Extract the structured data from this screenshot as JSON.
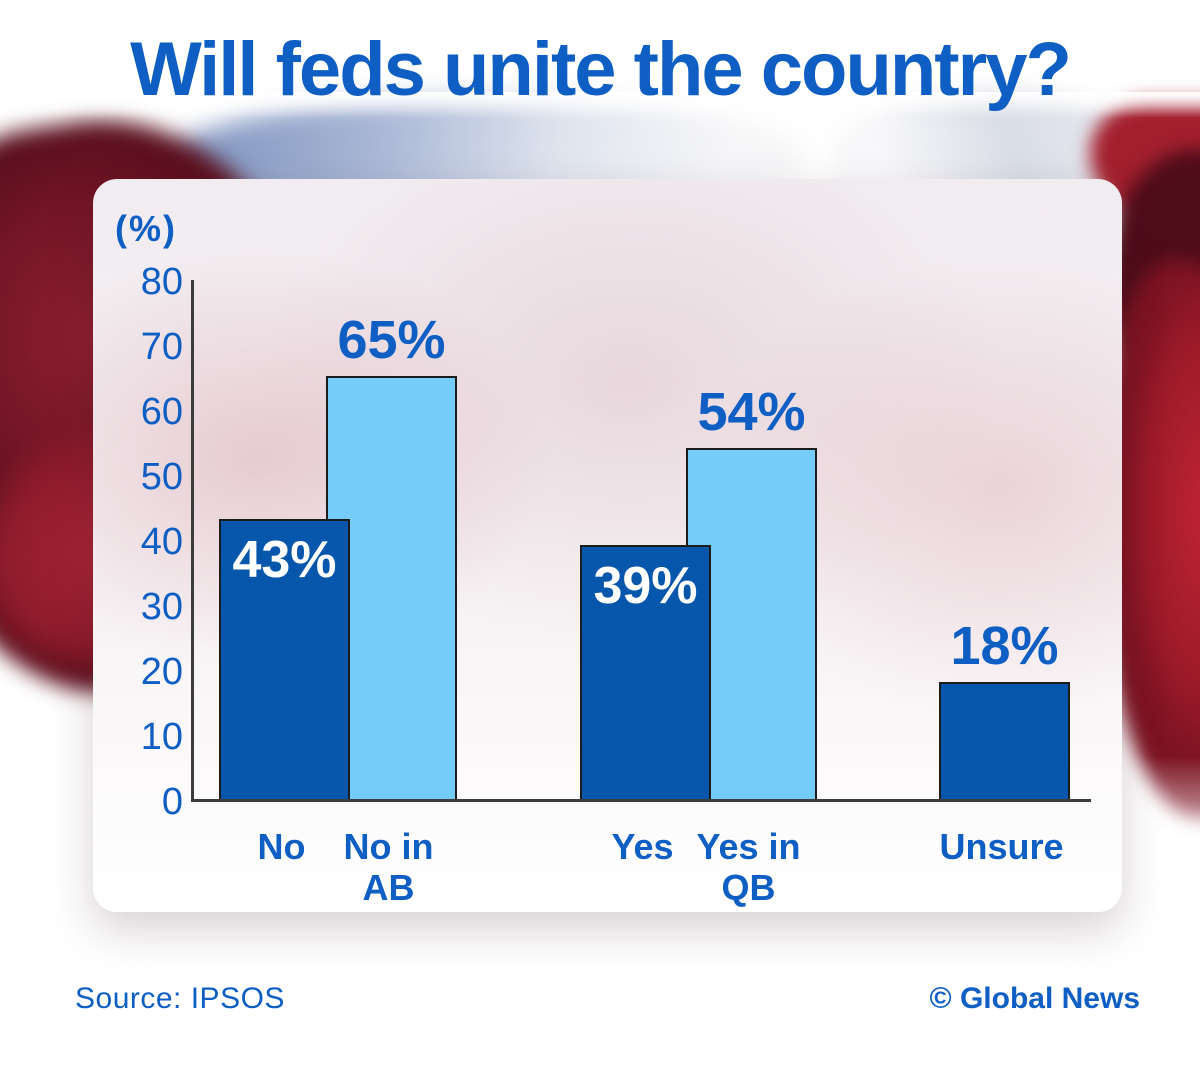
{
  "page": {
    "title": "Will feds unite the country?"
  },
  "footer": {
    "source": "Source: IPSOS",
    "credit": "© Global News"
  },
  "colors": {
    "accent_blue": "#0e5ec4",
    "dark_bar_blue": "#0657ac",
    "light_bar_blue": "#75ccf8",
    "bar_border": "#1c1c1c",
    "axis_gray": "#3c3c3c",
    "inside_label_white": "#ffffff",
    "flag_red_left": "#7d1829",
    "flag_red_right": "#b01f2e",
    "flag_blue_gray": "#8fa3c8"
  },
  "chart_data": {
    "type": "bar",
    "title": "Will feds unite the country?",
    "unit_label": "(%)",
    "xlabel": "",
    "ylabel": "(%)",
    "ylim": [
      0,
      80
    ],
    "yticks": [
      0,
      10,
      20,
      30,
      40,
      50,
      60,
      70,
      80
    ],
    "grid": false,
    "legend": "none",
    "categories": [
      "No",
      "No in AB",
      "Yes",
      "Yes in QB",
      "Unsure"
    ],
    "values": [
      43,
      65,
      39,
      54,
      18
    ],
    "bars": [
      {
        "category_lines": [
          "No"
        ],
        "value": 43,
        "display": "43%",
        "series": "dark",
        "value_label_position": "inside"
      },
      {
        "category_lines": [
          "No in",
          "AB"
        ],
        "value": 65,
        "display": "65%",
        "series": "light",
        "value_label_position": "above"
      },
      {
        "category_lines": [
          "Yes"
        ],
        "value": 39,
        "display": "39%",
        "series": "dark",
        "value_label_position": "inside"
      },
      {
        "category_lines": [
          "Yes in",
          "QB"
        ],
        "value": 54,
        "display": "54%",
        "series": "light",
        "value_label_position": "above"
      },
      {
        "category_lines": [
          "Unsure"
        ],
        "value": 18,
        "display": "18%",
        "series": "dark",
        "value_label_position": "above"
      }
    ]
  }
}
